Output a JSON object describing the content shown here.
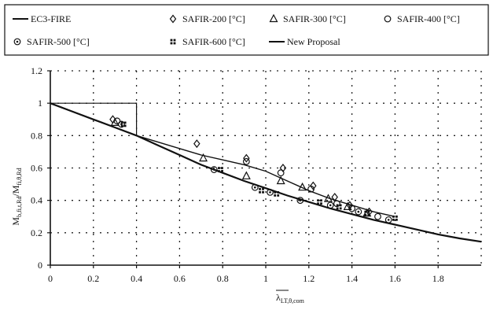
{
  "chart_data": {
    "type": "scatter",
    "xlabel": "λLT,θ,com",
    "ylabel": "Mb,fi,t,Rd/Mfi,θ,Rd",
    "xlim": [
      0,
      2.0
    ],
    "ylim": [
      0,
      1.2
    ],
    "x_ticks": [
      "0",
      "0.2",
      "0.4",
      "0.6",
      "0.8",
      "1",
      "1.2",
      "1.4",
      "1.6",
      "1.8"
    ],
    "y_ticks": [
      "0",
      "0.2",
      "0.4",
      "0.6",
      "0.8",
      "1",
      "1.2"
    ],
    "grid": true,
    "legend_position": "top",
    "series": [
      {
        "name": "EC3-FIRE",
        "kind": "line",
        "color": "#111111",
        "x": [
          0,
          0.1,
          0.2,
          0.3,
          0.4,
          0.5,
          0.6,
          0.7,
          0.8,
          0.9,
          1.0,
          1.1,
          1.2,
          1.3,
          1.4,
          1.5,
          1.6,
          1.7,
          1.8,
          1.9,
          2.0
        ],
        "y": [
          1.0,
          0.95,
          0.9,
          0.85,
          0.8,
          0.74,
          0.68,
          0.62,
          0.57,
          0.52,
          0.475,
          0.43,
          0.39,
          0.35,
          0.315,
          0.28,
          0.25,
          0.22,
          0.19,
          0.165,
          0.145
        ]
      },
      {
        "name": "SAFIR-200 [°C]",
        "kind": "marker",
        "marker": "diamond",
        "x": [
          0.29,
          0.68,
          0.91,
          1.08,
          1.22,
          1.32,
          1.39,
          1.48
        ],
        "y": [
          0.9,
          0.75,
          0.66,
          0.6,
          0.49,
          0.42,
          0.37,
          0.33
        ]
      },
      {
        "name": "SAFIR-300 [°C]",
        "kind": "marker",
        "marker": "triangle",
        "x": [
          0.3,
          0.71,
          0.91,
          1.07,
          1.17,
          1.29,
          1.38,
          1.47
        ],
        "y": [
          0.88,
          0.66,
          0.55,
          0.52,
          0.48,
          0.41,
          0.36,
          0.32
        ]
      },
      {
        "name": "SAFIR-400 [°C]",
        "kind": "marker",
        "marker": "circle",
        "x": [
          0.31,
          0.91,
          1.07,
          1.21,
          1.33,
          1.4,
          1.52
        ],
        "y": [
          0.89,
          0.64,
          0.57,
          0.47,
          0.38,
          0.35,
          0.3
        ]
      },
      {
        "name": "SAFIR-500 [°C]",
        "kind": "marker",
        "marker": "circle-dot",
        "x": [
          0.33,
          0.76,
          0.95,
          1.02,
          1.16,
          1.3,
          1.43,
          1.57
        ],
        "y": [
          0.87,
          0.59,
          0.48,
          0.45,
          0.4,
          0.37,
          0.33,
          0.28
        ]
      },
      {
        "name": "SAFIR-600 [°C]",
        "kind": "marker",
        "marker": "square-dots",
        "x": [
          0.34,
          0.79,
          0.98,
          1.05,
          1.25,
          1.34,
          1.47,
          1.6
        ],
        "y": [
          0.87,
          0.59,
          0.46,
          0.44,
          0.39,
          0.36,
          0.32,
          0.29
        ]
      },
      {
        "name": "New Proposal",
        "kind": "line",
        "color": "#111111",
        "x": [
          0,
          0.2,
          0.4,
          0.6,
          0.7,
          0.8,
          0.9,
          1.0,
          1.1,
          1.2,
          1.3,
          1.4,
          1.5,
          1.6
        ],
        "y": [
          1.0,
          0.9,
          0.8,
          0.72,
          0.68,
          0.65,
          0.62,
          0.58,
          0.52,
          0.46,
          0.41,
          0.37,
          0.33,
          0.3
        ]
      }
    ]
  }
}
